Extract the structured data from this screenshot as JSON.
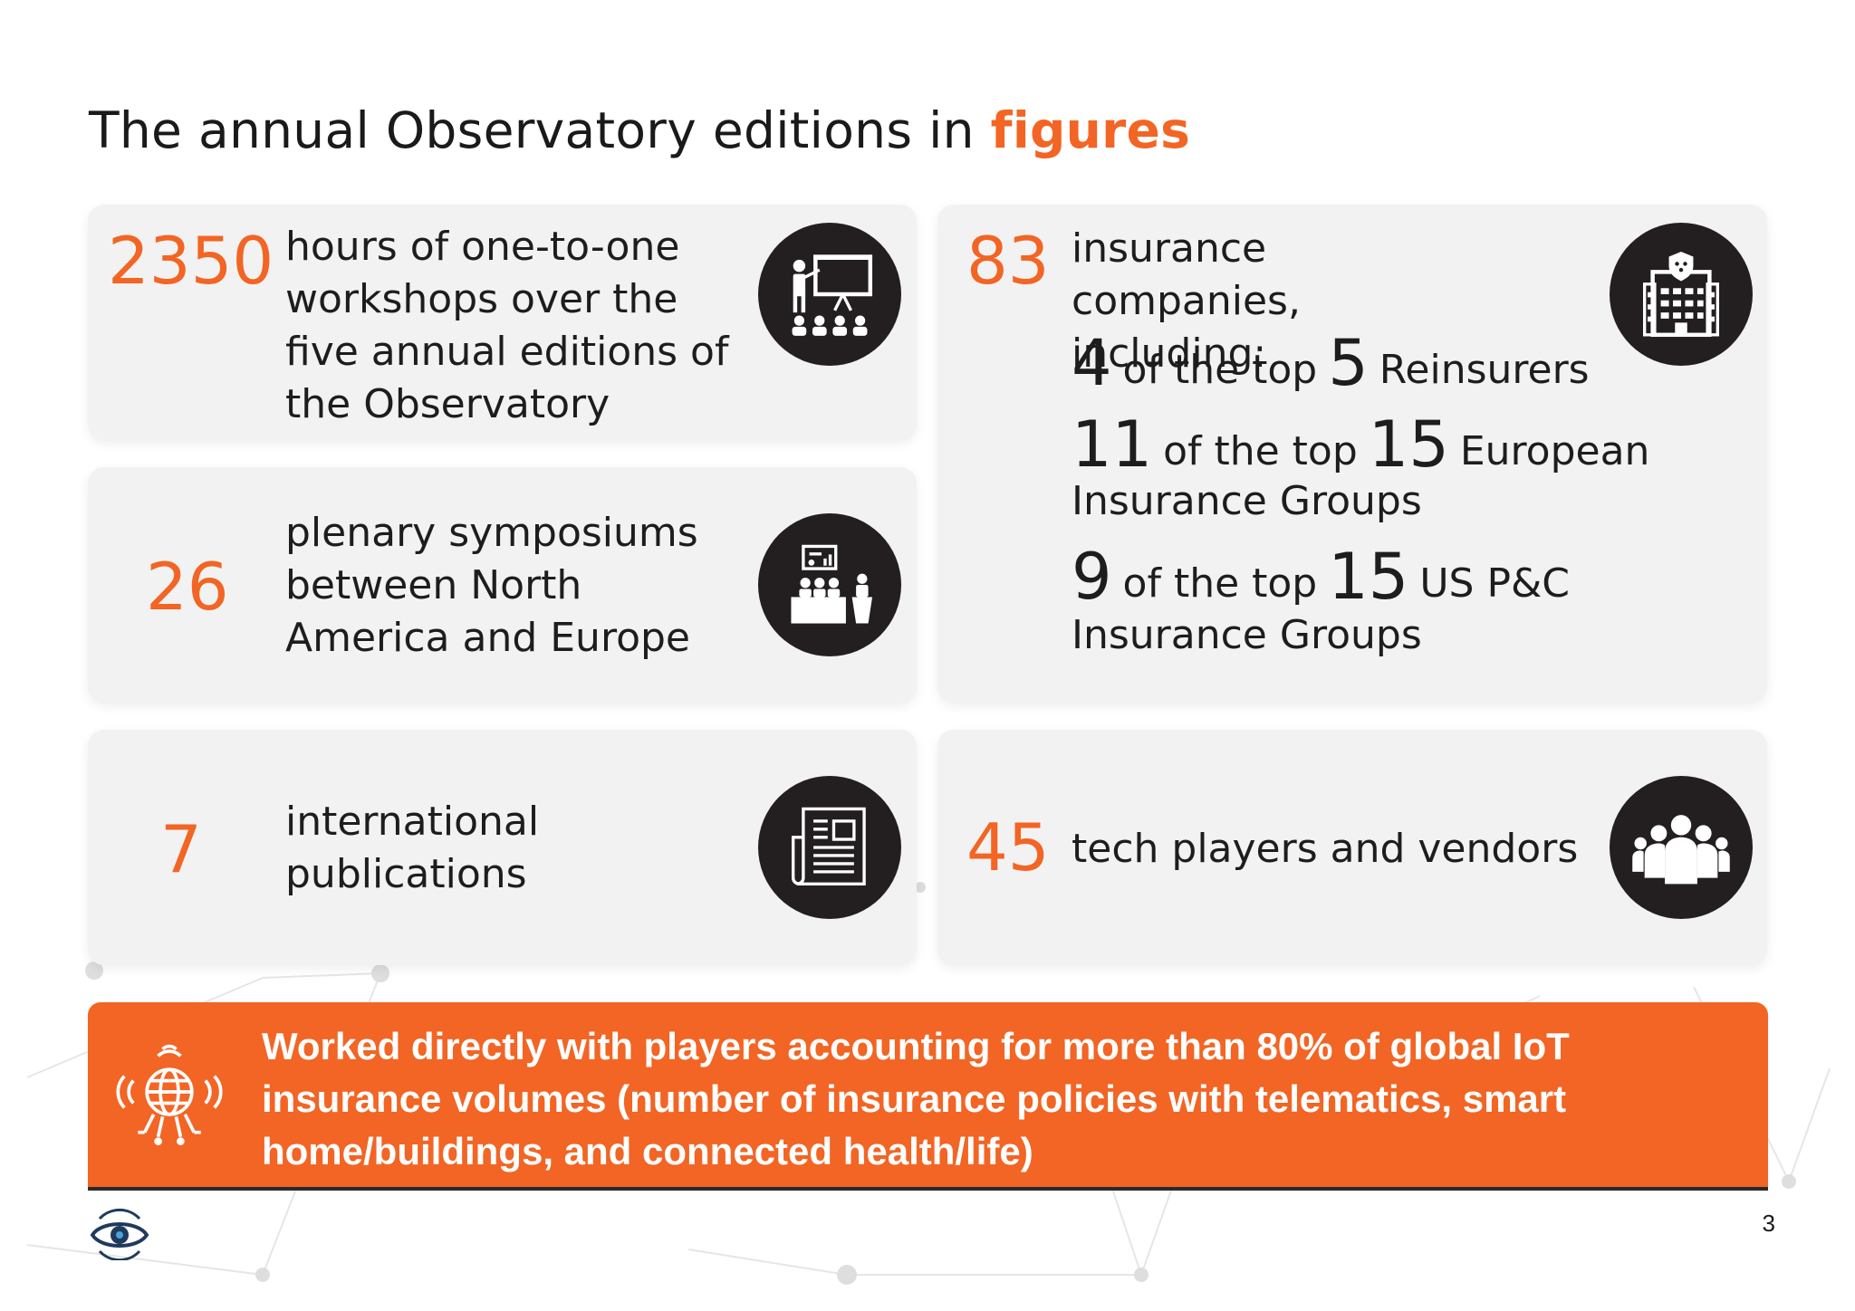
{
  "title": {
    "prefix": "The annual Observatory editions in ",
    "highlight": "figures"
  },
  "stats": {
    "workshops": {
      "number": "2350",
      "description": "hours of one-to-one workshops over the five annual editions of the Observatory",
      "icon": "presentation-icon"
    },
    "symposiums": {
      "number": "26",
      "description": "plenary symposiums between North America and Europe",
      "icon": "conference-panel-icon"
    },
    "publications": {
      "number": "7",
      "description": "international publications",
      "icon": "newspaper-icon"
    },
    "insurers": {
      "number": "83",
      "description": "insurance companies, including:",
      "icon": "insurance-building-icon",
      "figures": [
        {
          "count": "4",
          "of_text": "of the top",
          "total": "5",
          "label_line1": "Reinsurers",
          "label_line2": ""
        },
        {
          "count": "11",
          "of_text": "of the top",
          "total": "15",
          "label_line1": "European",
          "label_line2": "Insurance Groups"
        },
        {
          "count": "9",
          "of_text": "of the top",
          "total": "15",
          "label_line1": "US P&C",
          "label_line2": "Insurance Groups"
        }
      ]
    },
    "vendors": {
      "number": "45",
      "description": "tech players and vendors",
      "icon": "people-group-icon"
    }
  },
  "banner": {
    "text": "Worked directly with players accounting for more than 80% of global IoT insurance volumes (number of insurance policies with telematics, smart home/buildings, and connected health/life)",
    "icon": "iot-globe-icon"
  },
  "page_number": "3",
  "logo": "observatory-eye-logo",
  "colors": {
    "accent": "#f26524",
    "card": "#f2f2f2",
    "icon_bg": "#231f20",
    "text": "#1d1d1d"
  }
}
